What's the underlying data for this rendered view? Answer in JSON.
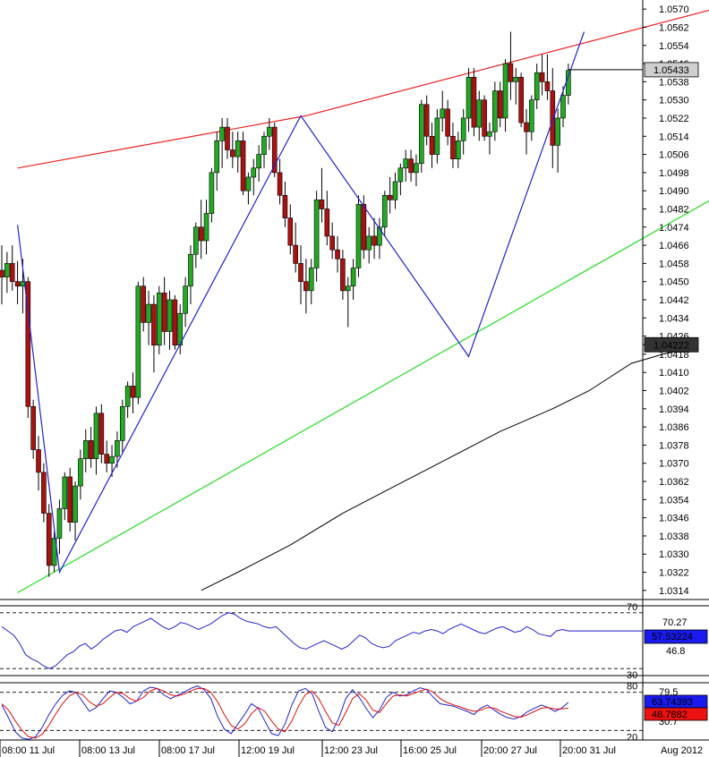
{
  "colors": {
    "bull": "#22aa22",
    "bear": "#aa1111",
    "upper_channel": "#ee2222",
    "lower_channel": "#22dd22",
    "zigzag": "#2222cc",
    "moving_average": "#000000",
    "rsi": "#2222cc",
    "stoch_k": "#2222cc",
    "stoch_d": "#dd1111",
    "last_price_tag": "#cfcfcf",
    "ma_tag": "#333333"
  },
  "chart_data": [
    {
      "type": "candlestick",
      "name": "main",
      "ylim": [
        1.031,
        1.0574
      ],
      "price_ticks": [
        "1.0570",
        "1.0562",
        "1.0554",
        "1.0546",
        "1.0538",
        "1.0530",
        "1.0522",
        "1.0514",
        "1.0506",
        "1.0498",
        "1.0490",
        "1.0482",
        "1.0474",
        "1.0466",
        "1.0458",
        "1.0450",
        "1.0442",
        "1.0434",
        "1.0426",
        "1.0418",
        "1.0410",
        "1.0402",
        "1.0394",
        "1.0386",
        "1.0378",
        "1.0370",
        "1.0362",
        "1.0354",
        "1.0346",
        "1.0338",
        "1.0330",
        "1.0322",
        "1.0314"
      ],
      "date_labels": [
        "08:00 11 Jul",
        "08:00 13 Jul",
        "08:00 17 Jul",
        "12:00 19 Jul",
        "12:00 23 Jul",
        "16:00 25 Jul",
        "20:00 27 Jul",
        "20:00 31 Jul",
        "Aug 2012"
      ],
      "last_price_tag": "1.05433",
      "ma_tag": "1.04222",
      "candles": [
        [
          1.0455,
          1.0466,
          1.044,
          1.0452
        ],
        [
          1.0452,
          1.0463,
          1.0445,
          1.0458
        ],
        [
          1.0458,
          1.0466,
          1.0446,
          1.045
        ],
        [
          1.045,
          1.0459,
          1.044,
          1.0448
        ],
        [
          1.0448,
          1.046,
          1.0436,
          1.045
        ],
        [
          1.045,
          1.0452,
          1.039,
          1.0395
        ],
        [
          1.0395,
          1.0398,
          1.0372,
          1.0376
        ],
        [
          1.0376,
          1.0382,
          1.0358,
          1.0366
        ],
        [
          1.0366,
          1.037,
          1.0344,
          1.0348
        ],
        [
          1.0348,
          1.0352,
          1.032,
          1.0325
        ],
        [
          1.0325,
          1.034,
          1.0322,
          1.0337
        ],
        [
          1.0337,
          1.0354,
          1.033,
          1.035
        ],
        [
          1.035,
          1.0366,
          1.0345,
          1.0364
        ],
        [
          1.0364,
          1.0368,
          1.034,
          1.0344
        ],
        [
          1.0344,
          1.0362,
          1.0336,
          1.036
        ],
        [
          1.036,
          1.0376,
          1.0354,
          1.0372
        ],
        [
          1.0372,
          1.0385,
          1.0366,
          1.038
        ],
        [
          1.038,
          1.0386,
          1.0368,
          1.0372
        ],
        [
          1.0372,
          1.0395,
          1.0365,
          1.0392
        ],
        [
          1.0392,
          1.0396,
          1.037,
          1.0374
        ],
        [
          1.0374,
          1.038,
          1.0366,
          1.037
        ],
        [
          1.037,
          1.0378,
          1.0364,
          1.0373
        ],
        [
          1.0373,
          1.0384,
          1.0368,
          1.038
        ],
        [
          1.038,
          1.0398,
          1.0375,
          1.0395
        ],
        [
          1.0395,
          1.0406,
          1.039,
          1.0404
        ],
        [
          1.0404,
          1.041,
          1.0392,
          1.0399
        ],
        [
          1.0399,
          1.045,
          1.0396,
          1.0448
        ],
        [
          1.0448,
          1.0452,
          1.0428,
          1.0432
        ],
        [
          1.0432,
          1.0446,
          1.0422,
          1.044
        ],
        [
          1.044,
          1.0444,
          1.041,
          1.0422
        ],
        [
          1.0422,
          1.0448,
          1.0418,
          1.0445
        ],
        [
          1.0445,
          1.0452,
          1.0422,
          1.0428
        ],
        [
          1.0428,
          1.0446,
          1.042,
          1.0442
        ],
        [
          1.0442,
          1.0444,
          1.042,
          1.0422
        ],
        [
          1.0422,
          1.044,
          1.0418,
          1.0436
        ],
        [
          1.0436,
          1.0452,
          1.043,
          1.0448
        ],
        [
          1.0448,
          1.0466,
          1.044,
          1.0462
        ],
        [
          1.0462,
          1.0476,
          1.0456,
          1.0474
        ],
        [
          1.0474,
          1.0486,
          1.046,
          1.0468
        ],
        [
          1.0468,
          1.0486,
          1.0462,
          1.048
        ],
        [
          1.048,
          1.05,
          1.0476,
          1.0498
        ],
        [
          1.0498,
          1.0516,
          1.049,
          1.0512
        ],
        [
          1.0512,
          1.0522,
          1.05,
          1.0518
        ],
        [
          1.0518,
          1.0522,
          1.0504,
          1.0508
        ],
        [
          1.0508,
          1.0516,
          1.05,
          1.0505
        ],
        [
          1.0505,
          1.0516,
          1.0498,
          1.0512
        ],
        [
          1.0512,
          1.0516,
          1.0488,
          1.049
        ],
        [
          1.049,
          1.0498,
          1.0484,
          1.0496
        ],
        [
          1.0496,
          1.0504,
          1.0488,
          1.05
        ],
        [
          1.05,
          1.051,
          1.0494,
          1.0506
        ],
        [
          1.0506,
          1.0516,
          1.05,
          1.0514
        ],
        [
          1.0514,
          1.0522,
          1.0508,
          1.0518
        ],
        [
          1.0518,
          1.052,
          1.0496,
          1.0498
        ],
        [
          1.0498,
          1.0504,
          1.0484,
          1.0488
        ],
        [
          1.0488,
          1.0494,
          1.0474,
          1.0478
        ],
        [
          1.0478,
          1.0484,
          1.0462,
          1.0466
        ],
        [
          1.0466,
          1.0476,
          1.0454,
          1.0458
        ],
        [
          1.0458,
          1.0466,
          1.044,
          1.045
        ],
        [
          1.045,
          1.046,
          1.0436,
          1.0446
        ],
        [
          1.0446,
          1.046,
          1.044,
          1.0456
        ],
        [
          1.0456,
          1.049,
          1.045,
          1.0486
        ],
        [
          1.0486,
          1.05,
          1.0476,
          1.0482
        ],
        [
          1.0482,
          1.049,
          1.0466,
          1.047
        ],
        [
          1.047,
          1.0476,
          1.046,
          1.0464
        ],
        [
          1.0464,
          1.047,
          1.0454,
          1.046
        ],
        [
          1.046,
          1.0464,
          1.0442,
          1.0446
        ],
        [
          1.0446,
          1.0452,
          1.043,
          1.0448
        ],
        [
          1.0448,
          1.046,
          1.0442,
          1.0456
        ],
        [
          1.0456,
          1.0488,
          1.0452,
          1.0484
        ],
        [
          1.0484,
          1.0488,
          1.046,
          1.0464
        ],
        [
          1.0464,
          1.0474,
          1.0458,
          1.047
        ],
        [
          1.047,
          1.0478,
          1.046,
          1.0466
        ],
        [
          1.0466,
          1.0478,
          1.046,
          1.0474
        ],
        [
          1.0474,
          1.049,
          1.047,
          1.0488
        ],
        [
          1.0488,
          1.0496,
          1.048,
          1.0486
        ],
        [
          1.0486,
          1.0498,
          1.0482,
          1.0494
        ],
        [
          1.0494,
          1.0502,
          1.0488,
          1.05
        ],
        [
          1.05,
          1.0508,
          1.0494,
          1.0504
        ],
        [
          1.0504,
          1.0508,
          1.0494,
          1.0498
        ],
        [
          1.0498,
          1.0506,
          1.0492,
          1.0502
        ],
        [
          1.0502,
          1.053,
          1.0498,
          1.0528
        ],
        [
          1.0528,
          1.0532,
          1.051,
          1.0514
        ],
        [
          1.0514,
          1.052,
          1.05,
          1.0506
        ],
        [
          1.0506,
          1.0526,
          1.0502,
          1.0522
        ],
        [
          1.0522,
          1.0534,
          1.0516,
          1.0526
        ],
        [
          1.0526,
          1.053,
          1.051,
          1.0514
        ],
        [
          1.0514,
          1.052,
          1.05,
          1.0504
        ],
        [
          1.0504,
          1.0516,
          1.05,
          1.0512
        ],
        [
          1.0512,
          1.0526,
          1.0506,
          1.0522
        ],
        [
          1.0522,
          1.0544,
          1.0516,
          1.054
        ],
        [
          1.054,
          1.0544,
          1.0514,
          1.0518
        ],
        [
          1.0518,
          1.0534,
          1.0512,
          1.053
        ],
        [
          1.053,
          1.0532,
          1.0512,
          1.0514
        ],
        [
          1.0514,
          1.052,
          1.0506,
          1.0516
        ],
        [
          1.0516,
          1.0538,
          1.0512,
          1.0534
        ],
        [
          1.0534,
          1.0538,
          1.0518,
          1.0522
        ],
        [
          1.0522,
          1.0548,
          1.0516,
          1.0546
        ],
        [
          1.0546,
          1.056,
          1.053,
          1.0538
        ],
        [
          1.0538,
          1.0544,
          1.0528,
          1.054
        ],
        [
          1.054,
          1.0542,
          1.0518,
          1.052
        ],
        [
          1.052,
          1.0526,
          1.0506,
          1.0516
        ],
        [
          1.0516,
          1.0532,
          1.0512,
          1.053
        ],
        [
          1.053,
          1.0546,
          1.0526,
          1.0542
        ],
        [
          1.0542,
          1.055,
          1.0532,
          1.0538
        ],
        [
          1.0538,
          1.055,
          1.053,
          1.0534
        ],
        [
          1.0534,
          1.0544,
          1.05,
          1.051
        ],
        [
          1.051,
          1.0526,
          1.0498,
          1.0522
        ],
        [
          1.0522,
          1.0536,
          1.0518,
          1.0532
        ],
        [
          1.0532,
          1.0546,
          1.0528,
          1.0543
        ]
      ],
      "moving_average": [
        [
          38,
          1.0314
        ],
        [
          45,
          1.0322
        ],
        [
          55,
          1.0334
        ],
        [
          65,
          1.0348
        ],
        [
          75,
          1.036
        ],
        [
          85,
          1.0372
        ],
        [
          95,
          1.0384
        ],
        [
          105,
          1.0394
        ],
        [
          112,
          1.0402
        ],
        [
          120,
          1.0414
        ],
        [
          126,
          1.0418
        ],
        [
          128,
          1.0419
        ],
        [
          131,
          1.0419
        ]
      ],
      "upper_channel": [
        [
          3,
          1.05
        ],
        [
          58,
          1.0523
        ],
        [
          139,
          1.0572
        ]
      ],
      "lower_channel": [
        [
          3,
          1.0313
        ],
        [
          139,
          1.0491
        ]
      ],
      "zigzag": [
        [
          3,
          1.0475
        ],
        [
          11,
          1.0322
        ],
        [
          57,
          1.0523
        ],
        [
          89,
          1.0417
        ],
        [
          111,
          1.056
        ]
      ]
    },
    {
      "type": "line",
      "name": "rsi",
      "ylim": [
        25,
        75
      ],
      "levels": [
        "70",
        "30"
      ],
      "axis_labels": [
        "70.27",
        "46.8"
      ],
      "value_tag": "57.53224",
      "values": [
        60,
        57,
        54,
        48,
        40,
        37,
        35,
        32,
        30,
        32,
        36,
        40,
        42,
        46,
        48,
        44,
        47,
        51,
        54,
        57,
        58,
        56,
        60,
        62,
        64,
        66,
        63,
        60,
        58,
        60,
        63,
        62,
        60,
        58,
        60,
        62,
        65,
        68,
        70,
        69,
        66,
        64,
        63,
        62,
        60,
        59,
        60,
        56,
        52,
        48,
        45,
        44,
        46,
        48,
        50,
        48,
        46,
        44,
        46,
        50,
        54,
        52,
        48,
        46,
        45,
        46,
        50,
        52,
        54,
        56,
        55,
        57,
        58,
        57,
        55,
        58,
        60,
        62,
        60,
        58,
        56,
        55,
        57,
        59,
        60,
        58,
        56,
        57,
        60,
        58,
        55,
        54,
        53,
        57,
        58,
        57
      ]
    },
    {
      "type": "line",
      "name": "stochastic",
      "ylim": [
        5,
        95
      ],
      "levels": [
        "80",
        "20"
      ],
      "axis_labels": [
        "79.5",
        "30.7"
      ],
      "tag_k": "63.74393",
      "tag_d": "48.7882",
      "k": [
        60,
        40,
        18,
        8,
        6,
        10,
        25,
        45,
        62,
        75,
        82,
        80,
        65,
        50,
        56,
        70,
        82,
        80,
        72,
        62,
        66,
        82,
        88,
        86,
        76,
        70,
        75,
        80,
        86,
        90,
        84,
        70,
        42,
        22,
        15,
        30,
        45,
        62,
        55,
        35,
        15,
        12,
        30,
        60,
        82,
        86,
        78,
        50,
        25,
        18,
        40,
        70,
        84,
        72,
        55,
        40,
        52,
        72,
        80,
        74,
        76,
        82,
        87,
        84,
        72,
        62,
        60,
        58,
        54,
        50,
        45,
        55,
        60,
        52,
        45,
        40,
        38,
        42,
        50,
        55,
        60,
        56,
        50,
        55,
        64
      ],
      "d": [
        62,
        52,
        35,
        20,
        10,
        8,
        14,
        28,
        46,
        62,
        74,
        80,
        76,
        65,
        58,
        62,
        72,
        80,
        78,
        70,
        66,
        72,
        82,
        86,
        82,
        76,
        74,
        77,
        82,
        86,
        86,
        80,
        65,
        45,
        28,
        22,
        30,
        46,
        56,
        50,
        35,
        22,
        18,
        35,
        58,
        76,
        82,
        70,
        50,
        32,
        28,
        48,
        70,
        78,
        68,
        52,
        48,
        62,
        74,
        76,
        74,
        78,
        82,
        85,
        80,
        70,
        64,
        60,
        57,
        53,
        50,
        52,
        56,
        55,
        50,
        46,
        42,
        41,
        45,
        50,
        55,
        56,
        54,
        54,
        55
      ]
    }
  ]
}
